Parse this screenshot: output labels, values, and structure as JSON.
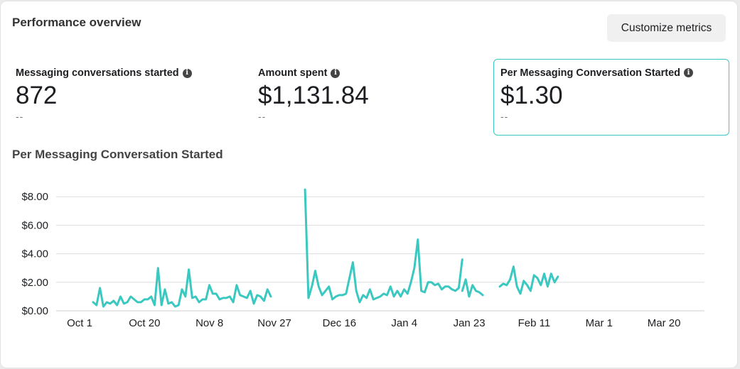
{
  "card": {
    "title": "Performance overview",
    "customize_label": "Customize metrics"
  },
  "metrics": [
    {
      "label": "Messaging conversations started",
      "value": "872",
      "delta": "--"
    },
    {
      "label": "Amount spent",
      "value": "$1,131.84",
      "delta": "--"
    },
    {
      "label": "Per Messaging Conversation Started",
      "value": "$1.30",
      "delta": "--",
      "selected": true
    }
  ],
  "icons": {
    "info": "info-icon"
  },
  "colors": {
    "series": "#3bc8c0",
    "selected_border": "#3bc8c0",
    "grid": "#dddddd"
  },
  "chart_title": "Per Messaging Conversation Started",
  "chart_data": {
    "type": "line",
    "title": "Per Messaging Conversation Started",
    "xlabel": "",
    "ylabel": "",
    "y_ticks": [
      "$0.00",
      "$2.00",
      "$4.00",
      "$6.00",
      "$8.00"
    ],
    "ylim": [
      0,
      8.5
    ],
    "x_ticks": [
      "Oct 1",
      "Oct 20",
      "Nov 8",
      "Nov 27",
      "Dec 16",
      "Jan 4",
      "Jan 23",
      "Feb 11",
      "Mar 1",
      "Mar 20"
    ],
    "x_start": "Oct 1",
    "grid": true,
    "legend": "none",
    "segments": [
      [
        0.6,
        0.4,
        1.6,
        0.3,
        0.6,
        0.5,
        0.7,
        0.4,
        1.0,
        0.5,
        0.6,
        1.0,
        0.8,
        0.6,
        0.6,
        0.8,
        0.8,
        1.0,
        0.4,
        3.0,
        0.4,
        1.5,
        0.5,
        0.6,
        0.3,
        0.4,
        1.5,
        1.0,
        2.9,
        0.9,
        1.0,
        0.6,
        0.8,
        0.8,
        1.8,
        1.2,
        1.2,
        0.8,
        0.9,
        0.9,
        1.0,
        0.6,
        1.8,
        1.1,
        1.0,
        0.9,
        1.4,
        0.5,
        1.1,
        1.0,
        0.7,
        1.5,
        1.0
      ],
      [
        8.5,
        0.9,
        1.7,
        2.8,
        1.7,
        1.1,
        1.4,
        1.7,
        0.8,
        1.0,
        1.1,
        1.1,
        1.2,
        2.3,
        3.4,
        1.4,
        0.6,
        1.1,
        0.9,
        1.5,
        0.8,
        0.9,
        1.0,
        1.2,
        1.1,
        1.7,
        1.0,
        1.4,
        1.0,
        1.5,
        1.2,
        2.0,
        3.0,
        5.0,
        1.4,
        1.3,
        2.0,
        2.0,
        1.8,
        1.9,
        1.5,
        1.7,
        1.7,
        1.5,
        1.4,
        1.6,
        3.6
      ],
      [
        1.4,
        2.2,
        1.0,
        1.8,
        1.4,
        1.3,
        1.1
      ],
      [
        1.7,
        1.9,
        1.8,
        2.2,
        3.1,
        1.7,
        1.2,
        2.1,
        1.8,
        1.4,
        2.5,
        2.3,
        1.8,
        2.6,
        1.7,
        2.6,
        2.0,
        2.4
      ]
    ]
  }
}
